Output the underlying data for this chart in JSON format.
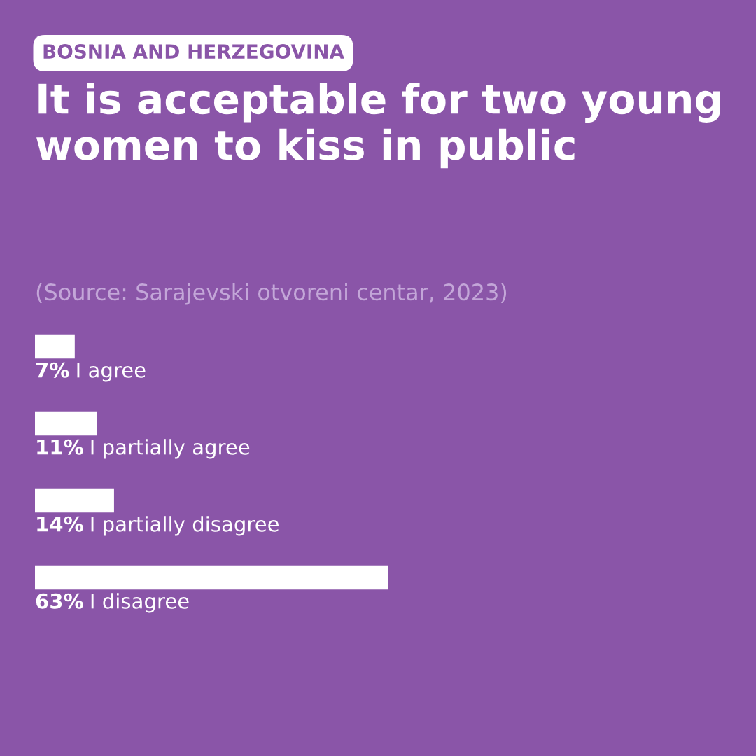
{
  "chart_data": {
    "type": "bar",
    "orientation": "horizontal",
    "subtitle": "BOSNIA AND HERZEGOVINA",
    "title": "It is acceptable for two young women to kiss in public",
    "annotations": [
      "(Source: Sarajevski otvoreni centar, 2023)"
    ],
    "categories": [
      "I agree",
      "I partially agree",
      "I partially disagree",
      "I disagree"
    ],
    "values": [
      7,
      11,
      14,
      63
    ],
    "value_labels": [
      "7%",
      "11%",
      "14%",
      "63%"
    ],
    "color": "#ffffff"
  }
}
